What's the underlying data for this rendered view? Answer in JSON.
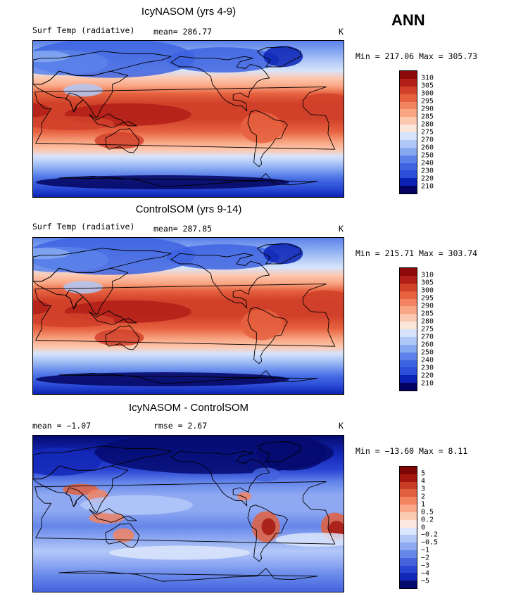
{
  "season": "ANN",
  "palettes": {
    "abs": [
      "#03035f",
      "#0b22b5",
      "#2d4ed8",
      "#3d63e0",
      "#5c82ea",
      "#86a8f1",
      "#b0c8f7",
      "#d6e4fb",
      "#fbe6da",
      "#fcc8b0",
      "#f9a684",
      "#f38462",
      "#e6613f",
      "#d1412a",
      "#b21f18",
      "#8c0a0a"
    ],
    "diff": [
      "#050a6e",
      "#1428b8",
      "#2b45d3",
      "#4463dd",
      "#6687ea",
      "#8ea8f2",
      "#b4c8f8",
      "#dbe5fb",
      "#fbe8de",
      "#fccbb3",
      "#faa789",
      "#f28462",
      "#e3603e",
      "#c83b24",
      "#a5180f",
      "#7c0505"
    ]
  },
  "panels": [
    {
      "title": "IcyNASOM (yrs 4-9)",
      "left_label": "Surf Temp (radiative)",
      "mid_label": "mean= 286.77",
      "units": "K",
      "minmax": "Min = 217.06 Max = 305.73",
      "ticks": [
        "310",
        "305",
        "300",
        "295",
        "290",
        "285",
        "280",
        "275",
        "270",
        "260",
        "250",
        "240",
        "230",
        "220",
        "210"
      ],
      "palette": "abs",
      "kind": "abs"
    },
    {
      "title": "ControlSOM (yrs 9-14)",
      "left_label": "Surf Temp (radiative)",
      "mid_label": "mean= 287.85",
      "units": "K",
      "minmax": "Min = 215.71 Max = 303.74",
      "ticks": [
        "310",
        "305",
        "300",
        "295",
        "290",
        "285",
        "280",
        "275",
        "270",
        "260",
        "250",
        "240",
        "230",
        "220",
        "210"
      ],
      "palette": "abs",
      "kind": "abs"
    },
    {
      "title": "IcyNASOM - ControlSOM",
      "left_label": "mean = −1.07",
      "mid_label": "rmse =   2.67",
      "units": "K",
      "minmax": "Min = −13.60 Max =   8.11",
      "ticks": [
        "5",
        "4",
        "3",
        "2",
        "1",
        "0.5",
        "0.2",
        "0",
        "−0.2",
        "−0.5",
        "−1",
        "−2",
        "−3",
        "−4",
        "−5"
      ],
      "palette": "diff",
      "kind": "diff"
    }
  ]
}
